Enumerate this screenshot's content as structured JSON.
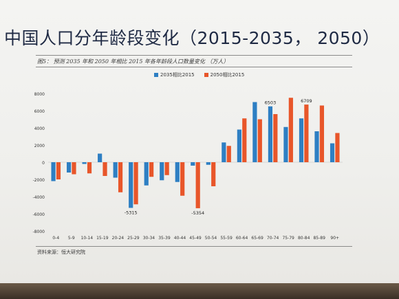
{
  "slide": {
    "title": "中国人口分年龄段变化（2015-2035， 2050）",
    "caption": "图5： 预测 2035 年和 2050 年相比 2015 年各年龄段人口数量变化 （万人）",
    "source": "资料来源：恒大研究院"
  },
  "colors": {
    "series1": "#2e7fc3",
    "series2": "#e8562a"
  },
  "chart_data": {
    "type": "bar",
    "categories": [
      "0-4",
      "5-9",
      "10-14",
      "15-19",
      "20-24",
      "25-29",
      "30-34",
      "35-39",
      "40-44",
      "45-49",
      "50-54",
      "55-59",
      "60-64",
      "65-69",
      "70-74",
      "75-79",
      "80-84",
      "85-89",
      "90+"
    ],
    "series": [
      {
        "name": "2035相比2015",
        "values": [
          -2200,
          -1200,
          -200,
          1000,
          -1800,
          -5315,
          -2700,
          -2100,
          -2300,
          -400,
          -300,
          2300,
          3800,
          7000,
          6503,
          4100,
          5100,
          3600,
          2200
        ]
      },
      {
        "name": "2050相比2015",
        "values": [
          -2000,
          -1400,
          -1300,
          -1600,
          -3500,
          -4900,
          -1700,
          -1500,
          -3900,
          -5354,
          -2800,
          1900,
          5100,
          5000,
          5600,
          7500,
          6709,
          6600,
          3400
        ]
      }
    ],
    "data_labels": [
      {
        "category": "25-29",
        "series": 0,
        "text": "-5315"
      },
      {
        "category": "45-49",
        "series": 1,
        "text": "-5354"
      },
      {
        "category": "70-74",
        "series": 0,
        "text": "6503"
      },
      {
        "category": "80-84",
        "series": 1,
        "text": "6709"
      }
    ],
    "ylim": [
      -8000,
      8000
    ],
    "yticks": [
      -8000,
      -6000,
      -4000,
      -2000,
      0,
      2000,
      4000,
      6000,
      8000
    ],
    "grid": false,
    "legend": "top-center",
    "title": "",
    "xlabel": "",
    "ylabel": ""
  }
}
